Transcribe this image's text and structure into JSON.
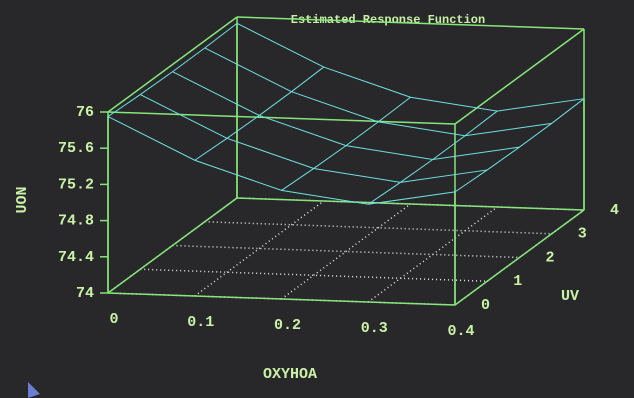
{
  "chart_data": {
    "type": "surface",
    "title": "Estimated Response Function",
    "xlabel": "OXYHOA",
    "ylabel": "UV",
    "zlabel": "UON",
    "x": [
      0,
      0.1,
      0.2,
      0.3,
      0.4
    ],
    "y": [
      0,
      1,
      2,
      3,
      4
    ],
    "z": [
      [
        75.95,
        75.5,
        75.2,
        75.08,
        75.25
      ],
      [
        75.93,
        75.48,
        75.18,
        75.06,
        75.23
      ],
      [
        75.92,
        75.47,
        75.17,
        75.05,
        75.22
      ],
      [
        75.92,
        75.47,
        75.17,
        75.05,
        75.22
      ],
      [
        75.93,
        75.48,
        75.18,
        75.06,
        75.23
      ]
    ],
    "xlim": [
      0,
      0.4
    ],
    "ylim": [
      0,
      4
    ],
    "zlim": [
      74,
      76
    ],
    "xticks": [
      0,
      0.1,
      0.2,
      0.3,
      0.4
    ],
    "yticks": [
      0,
      1,
      2,
      3,
      4
    ],
    "zticks": [
      74,
      74.4,
      74.8,
      75.2,
      75.6,
      76
    ],
    "grid": true,
    "color": "#6fe0e0",
    "box_color": "#86e67a"
  }
}
